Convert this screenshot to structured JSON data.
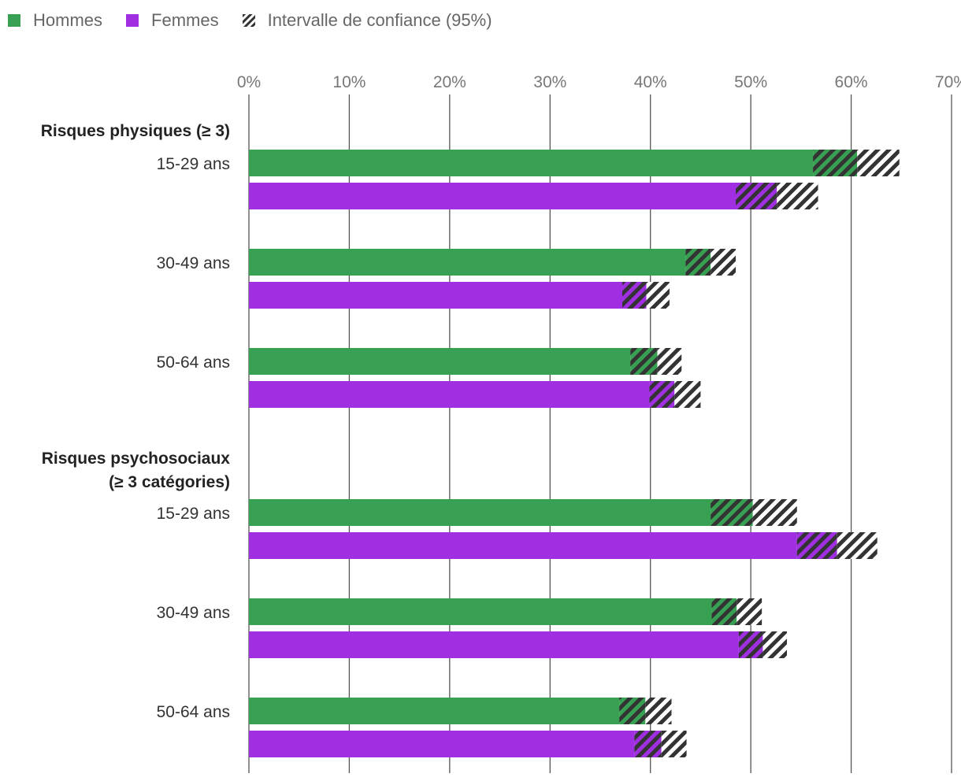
{
  "legend": {
    "men": "Hommes",
    "women": "Femmes",
    "ci": "Intervalle de confiance (95%)"
  },
  "colors": {
    "men": "#38a052",
    "women": "#9f2fe0",
    "ci_hatch": "#333333",
    "grid": "#555555",
    "axis_text": "#777777"
  },
  "chart_data": {
    "type": "bar",
    "orientation": "horizontal",
    "unit": "%",
    "xlim": [
      0,
      70
    ],
    "x_ticks": [
      "0%",
      "10%",
      "20%",
      "30%",
      "40%",
      "50%",
      "60%",
      "70%"
    ],
    "grid": true,
    "legend_position": "top-left",
    "groups": [
      {
        "label_lines": [
          "Risques physiques (≥ 3)"
        ],
        "categories": [
          {
            "label": "15-29 ans",
            "men": {
              "value": 60.6,
              "ci": [
                56.2,
                64.8
              ]
            },
            "women": {
              "value": 52.6,
              "ci": [
                48.5,
                56.7
              ]
            }
          },
          {
            "label": "30-49 ans",
            "men": {
              "value": 46.0,
              "ci": [
                43.5,
                48.5
              ]
            },
            "women": {
              "value": 39.6,
              "ci": [
                37.2,
                41.9
              ]
            }
          },
          {
            "label": "50-64 ans",
            "men": {
              "value": 40.7,
              "ci": [
                38.0,
                43.1
              ]
            },
            "women": {
              "value": 42.4,
              "ci": [
                39.9,
                45.0
              ]
            }
          }
        ]
      },
      {
        "label_lines": [
          "Risques psychosociaux",
          "(≥ 3 catégories)"
        ],
        "categories": [
          {
            "label": "15-29 ans",
            "men": {
              "value": 50.2,
              "ci": [
                46.0,
                54.6
              ]
            },
            "women": {
              "value": 58.6,
              "ci": [
                54.6,
                62.6
              ]
            }
          },
          {
            "label": "30-49 ans",
            "men": {
              "value": 48.6,
              "ci": [
                46.1,
                51.1
              ]
            },
            "women": {
              "value": 51.2,
              "ci": [
                48.8,
                53.6
              ]
            }
          },
          {
            "label": "50-64 ans",
            "men": {
              "value": 39.5,
              "ci": [
                36.9,
                42.1
              ]
            },
            "women": {
              "value": 41.1,
              "ci": [
                38.4,
                43.6
              ]
            }
          }
        ]
      }
    ]
  }
}
